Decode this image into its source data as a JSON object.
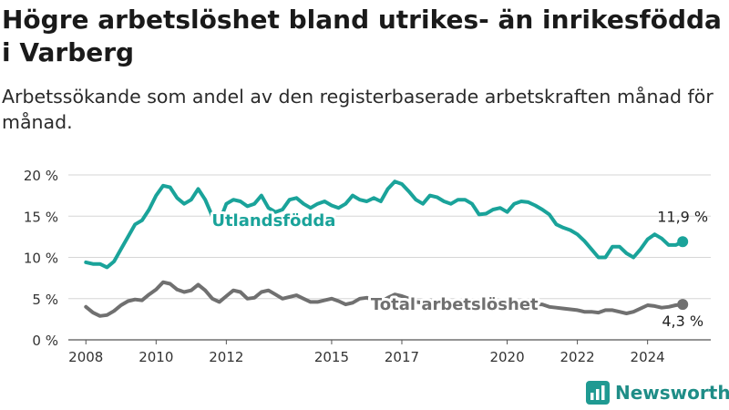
{
  "header": {
    "title": "Högre arbetslöshet bland utrikes- än inrikesfödda i Varberg",
    "subtitle": "Arbetssökande som andel av den registerbaserade arbetskraften månad för månad."
  },
  "brand": {
    "name": "Newsworthy",
    "color": "#1f9a92",
    "icon": "bar-chart-logo-icon"
  },
  "chart_data": {
    "type": "line",
    "title": "Högre arbetslöshet bland utrikes- än inrikesfödda i Varberg",
    "subtitle": "Arbetssökande som andel av den registerbaserade arbetskraften månad för månad.",
    "xlim": [
      2007.5,
      2025.8
    ],
    "ylim": [
      0,
      20
    ],
    "y_ticks": [
      0,
      5,
      10,
      15,
      20
    ],
    "y_tick_labels": [
      "0 %",
      "5 %",
      "10 %",
      "15 %",
      "20 %"
    ],
    "x_ticks": [
      2008,
      2010,
      2012,
      2015,
      2017,
      2020,
      2022,
      2024
    ],
    "x_tick_labels": [
      "2008",
      "2010",
      "2012",
      "2015",
      "2017",
      "2020",
      "2022",
      "2024"
    ],
    "grid": true,
    "legend": "inline",
    "series": [
      {
        "name": "Utlandsfödda",
        "color": "#1aa39a",
        "end_label": "11,9 %",
        "x": [
          2008.0,
          2008.2,
          2008.4,
          2008.6,
          2008.8,
          2009.0,
          2009.2,
          2009.4,
          2009.6,
          2009.8,
          2010.0,
          2010.2,
          2010.4,
          2010.6,
          2010.8,
          2011.0,
          2011.2,
          2011.4,
          2011.6,
          2011.8,
          2012.0,
          2012.2,
          2012.4,
          2012.6,
          2012.8,
          2013.0,
          2013.2,
          2013.4,
          2013.6,
          2013.8,
          2014.0,
          2014.2,
          2014.4,
          2014.6,
          2014.8,
          2015.0,
          2015.2,
          2015.4,
          2015.6,
          2015.8,
          2016.0,
          2016.2,
          2016.4,
          2016.6,
          2016.8,
          2017.0,
          2017.2,
          2017.4,
          2017.6,
          2017.8,
          2018.0,
          2018.2,
          2018.4,
          2018.6,
          2018.8,
          2019.0,
          2019.2,
          2019.4,
          2019.6,
          2019.8,
          2020.0,
          2020.2,
          2020.4,
          2020.6,
          2020.8,
          2021.0,
          2021.2,
          2021.4,
          2021.6,
          2021.8,
          2022.0,
          2022.2,
          2022.4,
          2022.6,
          2022.8,
          2023.0,
          2023.2,
          2023.4,
          2023.6,
          2023.8,
          2024.0,
          2024.2,
          2024.4,
          2024.6,
          2024.8,
          2025.0
        ],
        "values": [
          9.4,
          9.2,
          9.2,
          8.8,
          9.5,
          11.0,
          12.5,
          14.0,
          14.5,
          15.8,
          17.5,
          18.7,
          18.5,
          17.2,
          16.5,
          17.0,
          18.3,
          17.0,
          15.0,
          14.3,
          16.5,
          17.0,
          16.8,
          16.2,
          16.5,
          17.5,
          16.0,
          15.5,
          15.8,
          17.0,
          17.2,
          16.5,
          16.0,
          16.5,
          16.8,
          16.3,
          16.0,
          16.5,
          17.5,
          17.0,
          16.8,
          17.2,
          16.8,
          18.3,
          19.2,
          18.9,
          18.0,
          17.0,
          16.5,
          17.5,
          17.3,
          16.8,
          16.5,
          17.0,
          17.0,
          16.5,
          15.2,
          15.3,
          15.8,
          16.0,
          15.5,
          16.5,
          16.8,
          16.7,
          16.3,
          15.8,
          15.2,
          14.0,
          13.6,
          13.3,
          12.8,
          12.0,
          11.0,
          10.0,
          10.0,
          11.3,
          11.3,
          10.5,
          10.0,
          11.0,
          12.2,
          12.8,
          12.3,
          11.5,
          11.5,
          11.9
        ]
      },
      {
        "name": "Total arbetslöshet",
        "color": "#707070",
        "end_label": "4,3 %",
        "x": [
          2008.0,
          2008.2,
          2008.4,
          2008.6,
          2008.8,
          2009.0,
          2009.2,
          2009.4,
          2009.6,
          2009.8,
          2010.0,
          2010.2,
          2010.4,
          2010.6,
          2010.8,
          2011.0,
          2011.2,
          2011.4,
          2011.6,
          2011.8,
          2012.0,
          2012.2,
          2012.4,
          2012.6,
          2012.8,
          2013.0,
          2013.2,
          2013.4,
          2013.6,
          2013.8,
          2014.0,
          2014.2,
          2014.4,
          2014.6,
          2014.8,
          2015.0,
          2015.2,
          2015.4,
          2015.6,
          2015.8,
          2016.0,
          2016.2,
          2016.4,
          2016.6,
          2016.8,
          2017.0,
          2017.2,
          2017.4,
          2017.6,
          2017.8,
          2018.0,
          2018.2,
          2018.4,
          2018.6,
          2018.8,
          2019.0,
          2019.2,
          2019.4,
          2019.6,
          2019.8,
          2020.0,
          2020.2,
          2020.4,
          2020.6,
          2020.8,
          2021.0,
          2021.2,
          2021.4,
          2021.6,
          2021.8,
          2022.0,
          2022.2,
          2022.4,
          2022.6,
          2022.8,
          2023.0,
          2023.2,
          2023.4,
          2023.6,
          2023.8,
          2024.0,
          2024.2,
          2024.4,
          2024.6,
          2024.8,
          2025.0
        ],
        "values": [
          4.0,
          3.3,
          2.9,
          3.0,
          3.5,
          4.2,
          4.7,
          4.9,
          4.8,
          5.5,
          6.1,
          7.0,
          6.8,
          6.1,
          5.8,
          6.0,
          6.7,
          6.0,
          5.0,
          4.6,
          5.3,
          6.0,
          5.8,
          5.0,
          5.1,
          5.8,
          6.0,
          5.5,
          5.0,
          5.2,
          5.4,
          5.0,
          4.6,
          4.6,
          4.8,
          5.0,
          4.7,
          4.3,
          4.5,
          5.0,
          5.1,
          4.8,
          4.6,
          5.1,
          5.5,
          5.3,
          5.0,
          4.6,
          4.5,
          4.8,
          4.7,
          4.4,
          4.3,
          4.5,
          4.5,
          4.3,
          4.0,
          4.1,
          4.2,
          4.4,
          4.5,
          4.8,
          4.6,
          4.5,
          4.3,
          4.3,
          4.0,
          3.9,
          3.8,
          3.7,
          3.6,
          3.4,
          3.4,
          3.3,
          3.6,
          3.6,
          3.4,
          3.2,
          3.4,
          3.8,
          4.2,
          4.1,
          3.9,
          4.0,
          4.2,
          4.3
        ]
      }
    ]
  }
}
